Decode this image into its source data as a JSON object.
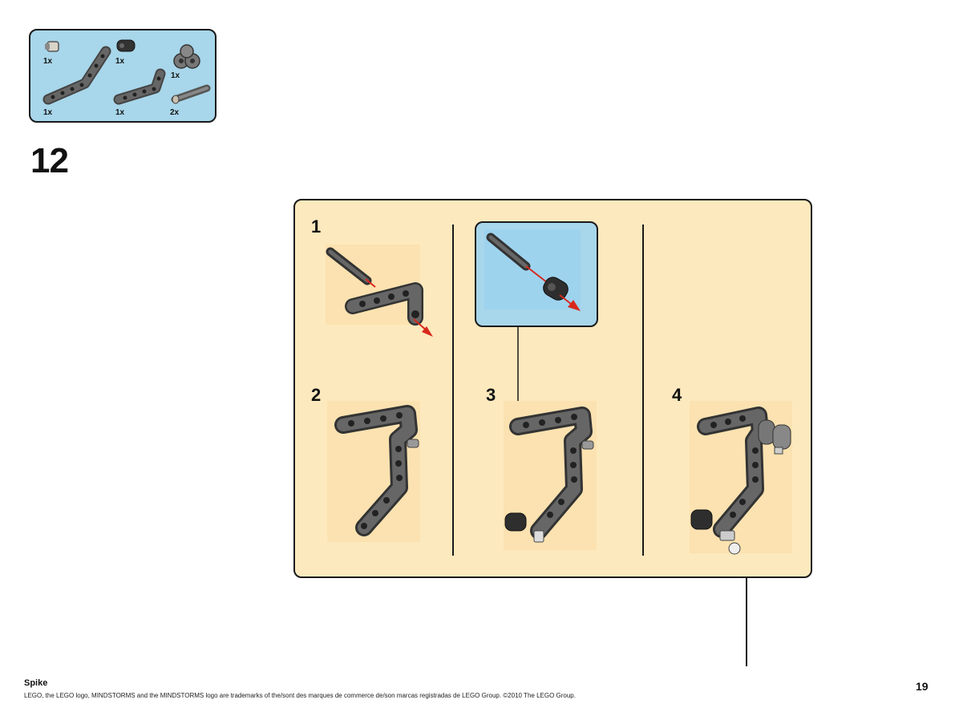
{
  "parts_list": {
    "items": [
      {
        "name": "axle-connector-light",
        "qty": "1x"
      },
      {
        "name": "bushing-dark",
        "qty": "1x"
      },
      {
        "name": "double-cross-block",
        "qty": "1x"
      },
      {
        "name": "angled-beam",
        "qty": "1x"
      },
      {
        "name": "l-beam",
        "qty": "1x"
      },
      {
        "name": "axle-pin",
        "qty": "2x"
      }
    ]
  },
  "step": {
    "number": "12"
  },
  "substeps": [
    "1",
    "2",
    "3",
    "4"
  ],
  "colors": {
    "parts_bg": "#a8d6ea",
    "frame_bg": "#fde9be",
    "part_dark": "#555555",
    "arrow_red": "#d8281c"
  },
  "footer": {
    "model_name": "Spike",
    "legal": "LEGO, the LEGO logo, MINDSTORMS and the MINDSTORMS logo are trademarks of the/sont des marques de commerce de/son marcas registradas de LEGO Group. ©2010 The LEGO Group.",
    "page_number": "19"
  }
}
